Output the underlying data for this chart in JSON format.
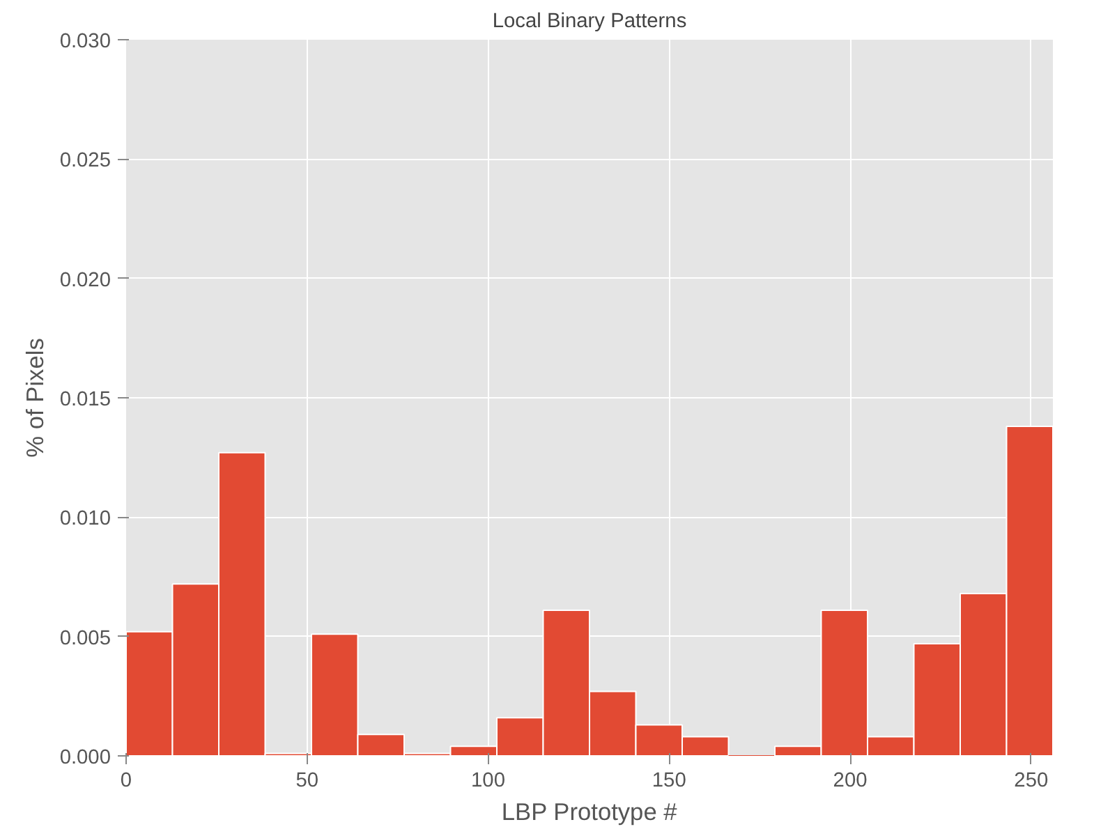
{
  "chart_data": {
    "type": "histogram",
    "title": "Local Binary Patterns",
    "xlabel": "LBP Prototype #",
    "ylabel": "% of Pixels",
    "bins": [
      0,
      12.8,
      25.6,
      38.4,
      51.2,
      64,
      76.8,
      89.6,
      102.4,
      115.2,
      128,
      140.8,
      153.6,
      166.4,
      179.2,
      192,
      204.8,
      217.6,
      230.4,
      243.2,
      256
    ],
    "values": [
      0.0052,
      0.0072,
      0.0127,
      0.0001,
      0.0051,
      0.0009,
      0.0001,
      0.0004,
      0.0016,
      0.0061,
      0.0027,
      0.0013,
      0.0008,
      0,
      0.0004,
      0.0061,
      0.0008,
      0.0047,
      0.0068,
      0.0138
    ],
    "color": "#e24a33",
    "xlim": [
      0,
      256
    ],
    "ylim": [
      0,
      0.03
    ],
    "xticks": [
      0,
      50,
      100,
      150,
      200,
      250
    ],
    "yticks": [
      {
        "value": 0,
        "label": "0.000"
      },
      {
        "value": 0.005,
        "label": "0.005"
      },
      {
        "value": 0.01,
        "label": "0.010"
      },
      {
        "value": 0.015,
        "label": "0.015"
      },
      {
        "value": 0.02,
        "label": "0.020"
      },
      {
        "value": 0.025,
        "label": "0.025"
      },
      {
        "value": 0.03,
        "label": "0.030"
      }
    ],
    "grid": true
  }
}
